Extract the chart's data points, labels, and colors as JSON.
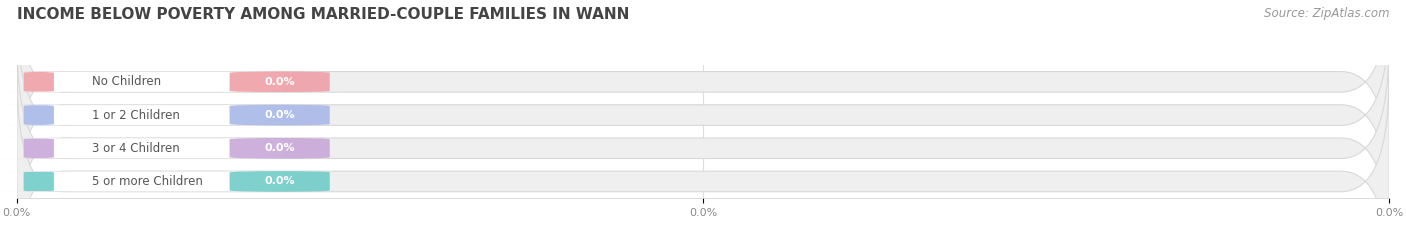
{
  "title": "INCOME BELOW POVERTY AMONG MARRIED-COUPLE FAMILIES IN WANN",
  "source": "Source: ZipAtlas.com",
  "categories": [
    "No Children",
    "1 or 2 Children",
    "3 or 4 Children",
    "5 or more Children"
  ],
  "values": [
    0.0,
    0.0,
    0.0,
    0.0
  ],
  "bar_colors": [
    "#f0a0a8",
    "#a8b8e8",
    "#c8a8d8",
    "#70ccc8"
  ],
  "bar_bg_color": "#efefef",
  "white_pill_color": "#ffffff",
  "title_fontsize": 11,
  "source_fontsize": 8.5,
  "cat_fontsize": 8.5,
  "val_fontsize": 8,
  "background_color": "#ffffff",
  "bar_height": 0.62,
  "grid_color": "#dddddd",
  "spine_color": "#cccccc",
  "tick_color": "#888888",
  "cat_text_color": "#555555",
  "val_text_color": "#ffffff",
  "title_color": "#444444",
  "source_color": "#999999"
}
